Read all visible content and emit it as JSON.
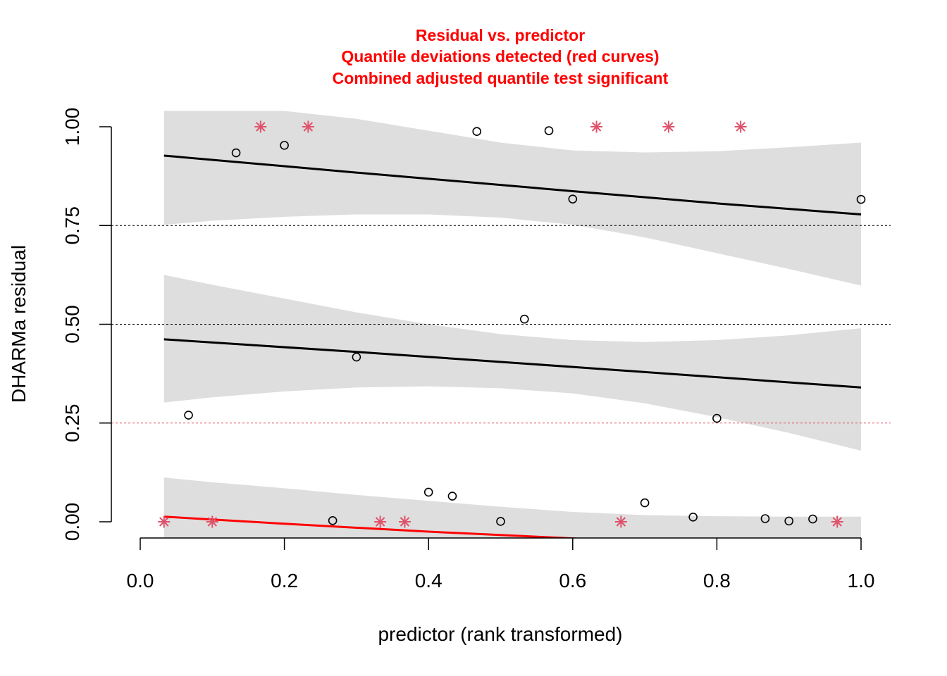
{
  "chart_data": {
    "type": "scatter",
    "title_lines": [
      "Residual vs. predictor",
      "Quantile deviations detected (red curves)",
      "Combined adjusted quantile test significant"
    ],
    "xlabel": "predictor (rank transformed)",
    "ylabel": "DHARMa residual",
    "xlim": [
      0.0,
      1.0
    ],
    "ylim": [
      0.0,
      1.0
    ],
    "x_ticks": [
      "0.0",
      "0.2",
      "0.4",
      "0.6",
      "0.8",
      "1.0"
    ],
    "y_ticks": [
      "0.00",
      "0.25",
      "0.50",
      "0.75",
      "1.00"
    ],
    "reference_lines": [
      {
        "y": 0.25,
        "color": "#df536b"
      },
      {
        "y": 0.5,
        "color": "#000000"
      },
      {
        "y": 0.75,
        "color": "#000000"
      }
    ],
    "points": [
      {
        "x": 0.067,
        "y": 0.27
      },
      {
        "x": 0.133,
        "y": 0.934
      },
      {
        "x": 0.2,
        "y": 0.953
      },
      {
        "x": 0.267,
        "y": 0.003
      },
      {
        "x": 0.3,
        "y": 0.417
      },
      {
        "x": 0.4,
        "y": 0.075
      },
      {
        "x": 0.433,
        "y": 0.065
      },
      {
        "x": 0.467,
        "y": 0.988
      },
      {
        "x": 0.5,
        "y": 0.001
      },
      {
        "x": 0.533,
        "y": 0.513
      },
      {
        "x": 0.567,
        "y": 0.99
      },
      {
        "x": 0.6,
        "y": 0.817
      },
      {
        "x": 0.7,
        "y": 0.048
      },
      {
        "x": 0.767,
        "y": 0.012
      },
      {
        "x": 0.8,
        "y": 0.262
      },
      {
        "x": 0.867,
        "y": 0.008
      },
      {
        "x": 0.9,
        "y": 0.002
      },
      {
        "x": 0.933,
        "y": 0.007
      },
      {
        "x": 1.0,
        "y": 0.816
      }
    ],
    "outliers": [
      {
        "x": 0.033,
        "y": 0.0
      },
      {
        "x": 0.1,
        "y": 0.0
      },
      {
        "x": 0.167,
        "y": 1.0
      },
      {
        "x": 0.233,
        "y": 1.0
      },
      {
        "x": 0.333,
        "y": 0.0
      },
      {
        "x": 0.367,
        "y": 0.0
      },
      {
        "x": 0.633,
        "y": 1.0
      },
      {
        "x": 0.667,
        "y": 0.0
      },
      {
        "x": 0.733,
        "y": 1.0
      },
      {
        "x": 0.833,
        "y": 1.0
      },
      {
        "x": 0.967,
        "y": 0.0
      }
    ],
    "quantile_fits": [
      {
        "quantile": 0.25,
        "color": "#ff0000",
        "x": [
          0.033,
          0.2,
          0.4,
          0.6,
          0.63
        ],
        "y": [
          0.013,
          -0.005,
          -0.025,
          -0.042,
          -0.045
        ]
      },
      {
        "quantile": 0.5,
        "color": "#000000",
        "x": [
          0.033,
          0.3,
          0.6,
          0.8,
          1.0
        ],
        "y": [
          0.462,
          0.43,
          0.392,
          0.366,
          0.34
        ]
      },
      {
        "quantile": 0.75,
        "color": "#000000",
        "x": [
          0.033,
          0.3,
          0.6,
          0.8,
          1.0
        ],
        "y": [
          0.927,
          0.884,
          0.837,
          0.806,
          0.778
        ]
      }
    ],
    "confidence_bands": [
      {
        "x": [
          0.033,
          0.1,
          0.2,
          0.3,
          0.4,
          0.5,
          0.6,
          0.7,
          0.8,
          0.9,
          1.0
        ],
        "lower": [
          -0.04,
          -0.04,
          -0.04,
          -0.04,
          -0.04,
          -0.04,
          -0.04,
          -0.04,
          -0.04,
          -0.04,
          -0.04
        ],
        "upper": [
          0.112,
          0.1,
          0.085,
          0.068,
          0.053,
          0.038,
          0.025,
          0.017,
          0.014,
          0.013,
          0.013
        ]
      },
      {
        "x": [
          0.033,
          0.1,
          0.2,
          0.3,
          0.4,
          0.5,
          0.6,
          0.7,
          0.8,
          0.9,
          1.0
        ],
        "lower": [
          0.302,
          0.315,
          0.33,
          0.34,
          0.343,
          0.338,
          0.325,
          0.3,
          0.265,
          0.225,
          0.18
        ],
        "upper": [
          0.625,
          0.6,
          0.565,
          0.53,
          0.5,
          0.475,
          0.46,
          0.455,
          0.46,
          0.472,
          0.49
        ]
      },
      {
        "x": [
          0.033,
          0.1,
          0.2,
          0.3,
          0.4,
          0.5,
          0.6,
          0.7,
          0.8,
          0.9,
          1.0
        ],
        "lower": [
          0.752,
          0.762,
          0.772,
          0.778,
          0.778,
          0.77,
          0.752,
          0.72,
          0.68,
          0.64,
          0.598
        ],
        "upper": [
          1.04,
          1.04,
          1.04,
          1.02,
          0.99,
          0.96,
          0.94,
          0.935,
          0.938,
          0.948,
          0.96
        ]
      }
    ],
    "colors": {
      "band": "#dedede",
      "point": "#000000",
      "outlier": "#df536b",
      "deviation": "#ff0000"
    }
  }
}
